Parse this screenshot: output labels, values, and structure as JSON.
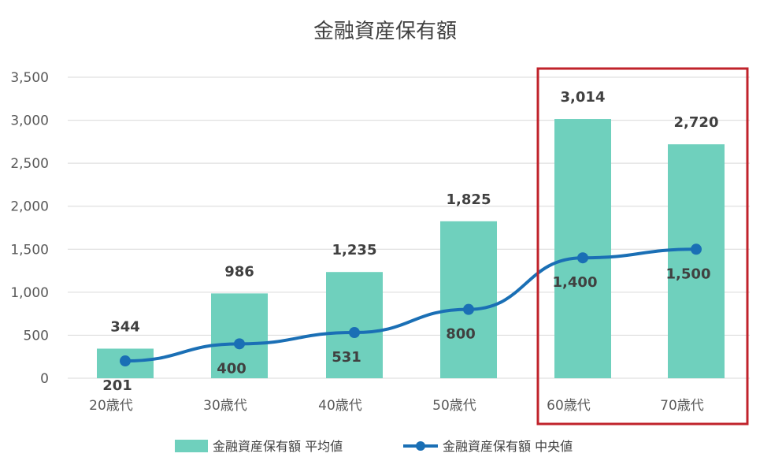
{
  "chart_data": {
    "type": "bar",
    "title": "金融資産保有額",
    "categories": [
      "20歳代",
      "30歳代",
      "40歳代",
      "50歳代",
      "60歳代",
      "70歳代"
    ],
    "series": [
      {
        "name": "金融資産保有額 平均値",
        "type": "bar",
        "values": [
          344,
          986,
          1235,
          1825,
          3014,
          2720
        ],
        "labels": [
          "344",
          "986",
          "1,235",
          "1,825",
          "3,014",
          "2,720"
        ]
      },
      {
        "name": "金融資産保有額 中央値",
        "type": "line",
        "values": [
          201,
          400,
          531,
          800,
          1400,
          1500
        ],
        "labels": [
          "201",
          "400",
          "531",
          "800",
          "1,400",
          "1,500"
        ]
      }
    ],
    "ylim": [
      0,
      3500
    ],
    "yticks": [
      "0",
      "500",
      "1,000",
      "1,500",
      "2,000",
      "2,500",
      "3,000",
      "3,500"
    ],
    "xlabel": "",
    "ylabel": "",
    "grid": true,
    "legend": "bottom",
    "highlight": {
      "categories": [
        "60歳代",
        "70歳代"
      ],
      "color": "#c0232b"
    },
    "colors": {
      "bar": "#6fd0bd",
      "line": "#1a6fb5"
    }
  }
}
